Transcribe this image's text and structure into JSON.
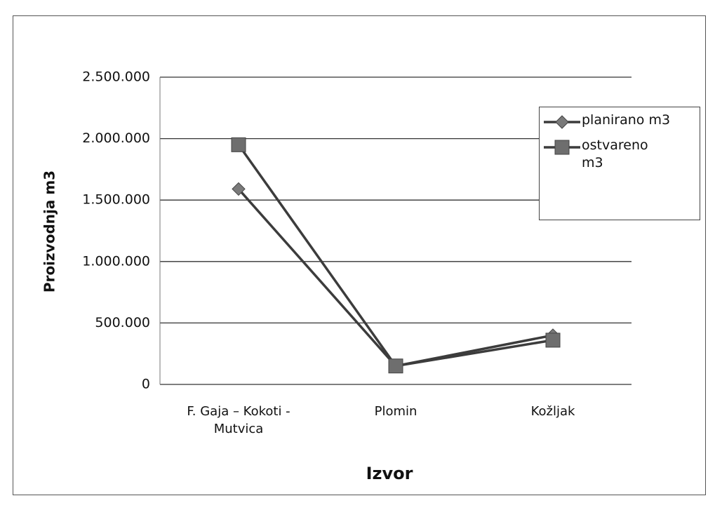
{
  "chart_data": {
    "type": "line",
    "x_label": "Izvor",
    "y_label": "Proizvodnja m3",
    "categories": [
      "F. Gaja – Kokoti - Mutvica",
      "Plomin",
      "Kožljak"
    ],
    "series": [
      {
        "name": "planirano m3",
        "color": "#3c3c3c",
        "marker": "diamond",
        "marker_color": "#7a7a7a",
        "values": [
          1590000,
          150000,
          400000
        ]
      },
      {
        "name": "ostvareno m3",
        "color": "#3c3c3c",
        "marker": "square",
        "marker_color": "#6e6e6e",
        "values": [
          1950000,
          150000,
          360000
        ]
      }
    ],
    "ylim": [
      0,
      2500000
    ],
    "yticks": [
      0,
      {
        "value": 500000,
        "label": "500.000"
      },
      {
        "value": 1000000,
        "label": "1.000.000"
      },
      {
        "value": 1500000,
        "label": "1.500.000"
      },
      {
        "value": 2000000,
        "label": "2.000.000"
      },
      {
        "value": 2500000,
        "label": "2.500.000"
      }
    ],
    "grid": true,
    "legend": "upper right"
  }
}
